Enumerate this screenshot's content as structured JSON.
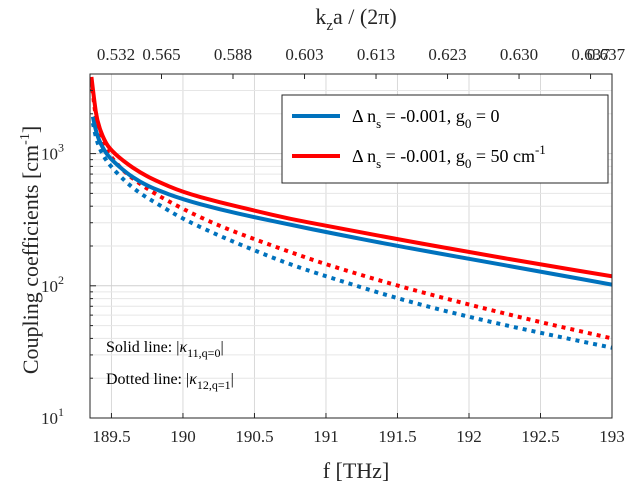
{
  "chart_data": {
    "type": "line",
    "xlabel": "f [THz]",
    "ylabel": "Coupling coefficients [cm",
    "ylabel_sup": "-1",
    "ylabel_close": "]",
    "top_label_main": "k",
    "top_label_sub": "z",
    "top_label_rest": "a / (2π)",
    "xlim": [
      189.35,
      193
    ],
    "ylim": [
      10,
      4000
    ],
    "y_scale": "log",
    "grid": true,
    "x_ticks": [
      189.5,
      190,
      190.5,
      191,
      191.5,
      192,
      192.5,
      193
    ],
    "x_tick_labels": [
      "189.5",
      "190",
      "190.5",
      "191",
      "191.5",
      "192",
      "192.5",
      "193"
    ],
    "y_ticks": [
      10,
      100,
      1000
    ],
    "y_tick_labels": [
      {
        "base": "10",
        "exp": "1"
      },
      {
        "base": "10",
        "exp": "2"
      },
      {
        "base": "10",
        "exp": "3"
      }
    ],
    "top_ticks": [
      189.35,
      189.85,
      190.35,
      190.85,
      191.35,
      191.85,
      192.35,
      192.85,
      193
    ],
    "top_tick_labels": [
      "0.532",
      "0.565",
      "0.588",
      "0.603",
      "0.613",
      "0.623",
      "0.630",
      "0.637",
      "0.637"
    ],
    "legend": {
      "placement": "top-right",
      "entries": [
        {
          "prefix": "Δ n",
          "sub": "s",
          "text": " = -0.001, g",
          "sub2": "0",
          "tail": " = 0",
          "sup": "",
          "color": "#0072BD"
        },
        {
          "prefix": "Δ n",
          "sub": "s",
          "text": " = -0.001, g",
          "sub2": "0",
          "tail": " = 50 cm",
          "sup": "-1",
          "color": "#FF0000"
        }
      ]
    },
    "annotations": [
      {
        "pre": "Solid line: |",
        "kappa": "κ",
        "sub": "11,q=0",
        "post": "|"
      },
      {
        "pre": "Dotted line: |",
        "kappa": "κ",
        "sub": "12,q=1",
        "post": "|"
      }
    ],
    "series": [
      {
        "name": "Δ n_s = -0.001, g_0 = 0 (solid)",
        "color": "#0072BD",
        "style": "solid",
        "x": [
          189.37,
          189.4,
          189.45,
          189.5,
          189.6,
          189.7,
          189.8,
          190,
          190.25,
          190.5,
          190.75,
          191,
          191.5,
          192,
          192.5,
          193
        ],
        "y": [
          1900,
          1350,
          1050,
          900,
          720,
          610,
          540,
          450,
          380,
          330,
          290,
          255,
          200,
          160,
          128,
          102
        ]
      },
      {
        "name": "Δ n_s = -0.001, g_0 = 50 cm^-1 (solid)",
        "color": "#FF0000",
        "style": "solid",
        "x": [
          189.36,
          189.38,
          189.4,
          189.45,
          189.5,
          189.6,
          189.7,
          189.8,
          190,
          190.25,
          190.5,
          190.75,
          191,
          191.5,
          192,
          192.5,
          193
        ],
        "y": [
          3800,
          2500,
          1750,
          1250,
          1050,
          850,
          720,
          630,
          510,
          430,
          370,
          320,
          285,
          225,
          180,
          145,
          118
        ]
      },
      {
        "name": "Δ n_s = -0.001, g_0 = 0 (dotted)",
        "color": "#0072BD",
        "style": "dotted",
        "x": [
          189.37,
          189.4,
          189.45,
          189.5,
          189.6,
          189.7,
          189.8,
          190,
          190.25,
          190.5,
          190.75,
          191,
          191.5,
          192,
          192.5,
          193
        ],
        "y": [
          1700,
          1200,
          930,
          790,
          610,
          500,
          430,
          320,
          240,
          185,
          145,
          118,
          80,
          58,
          44,
          34
        ]
      },
      {
        "name": "Δ n_s = -0.001, g_0 = 50 cm^-1 (dotted)",
        "color": "#FF0000",
        "style": "dotted",
        "x": [
          189.36,
          189.38,
          189.4,
          189.45,
          189.5,
          189.6,
          189.7,
          189.8,
          190,
          190.25,
          190.5,
          190.75,
          191,
          191.5,
          192,
          192.5,
          193
        ],
        "y": [
          3600,
          2300,
          1600,
          1130,
          930,
          710,
          590,
          500,
          380,
          285,
          225,
          180,
          145,
          100,
          72,
          53,
          40
        ]
      }
    ]
  }
}
